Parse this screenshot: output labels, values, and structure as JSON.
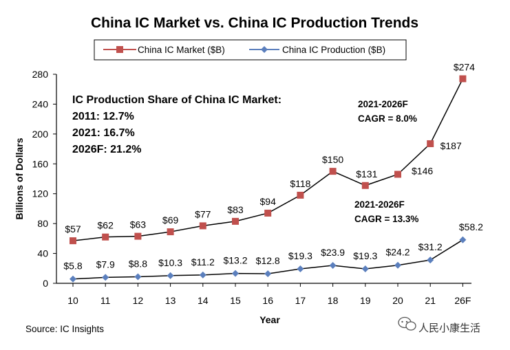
{
  "chart_data": {
    "type": "line",
    "title": "China IC Market vs. China IC Production Trends",
    "xlabel": "Year",
    "ylabel": "Billions of Dollars",
    "ylim": [
      0,
      280
    ],
    "yticks": [
      0,
      40,
      80,
      120,
      160,
      200,
      240,
      280
    ],
    "categories": [
      "10",
      "11",
      "12",
      "13",
      "14",
      "15",
      "16",
      "17",
      "18",
      "19",
      "20",
      "21",
      "26F"
    ],
    "grid": false,
    "legend_position": "top",
    "series": [
      {
        "name": "China IC Market ($B)",
        "color": "#c0504d",
        "marker": "square",
        "values": [
          57,
          62,
          63,
          69,
          77,
          83,
          94,
          118,
          150,
          131,
          146,
          187,
          274
        ],
        "labels": [
          "$57",
          "$62",
          "$63",
          "$69",
          "$77",
          "$83",
          "$94",
          "$118",
          "$150",
          "$131",
          "$146",
          "$187",
          "$274"
        ]
      },
      {
        "name": "China IC Production ($B)",
        "color": "#5b7fbd",
        "marker": "diamond",
        "values": [
          5.8,
          7.9,
          8.8,
          10.3,
          11.2,
          13.2,
          12.8,
          19.3,
          23.9,
          19.3,
          24.2,
          31.2,
          58.2
        ],
        "labels": [
          "$5.8",
          "$7.9",
          "$8.8",
          "$10.3",
          "$11.2",
          "$13.2",
          "$12.8",
          "$19.3",
          "$23.9",
          "$19.3",
          "$24.2",
          "$31.2",
          "$58.2"
        ]
      }
    ],
    "annotations": {
      "share_title": "IC Production Share of China IC Market:",
      "share_lines": [
        "2011: 12.7%",
        "2021: 16.7%",
        "2026F: 21.2%"
      ],
      "market_cagr": [
        "2021-2026F",
        "CAGR = 8.0%"
      ],
      "production_cagr": [
        "2021-2026F",
        "CAGR = 13.3%"
      ]
    },
    "source": "Source: IC Insights"
  },
  "watermark": {
    "text": "人民小康生活",
    "icon": "wechat-icon"
  }
}
